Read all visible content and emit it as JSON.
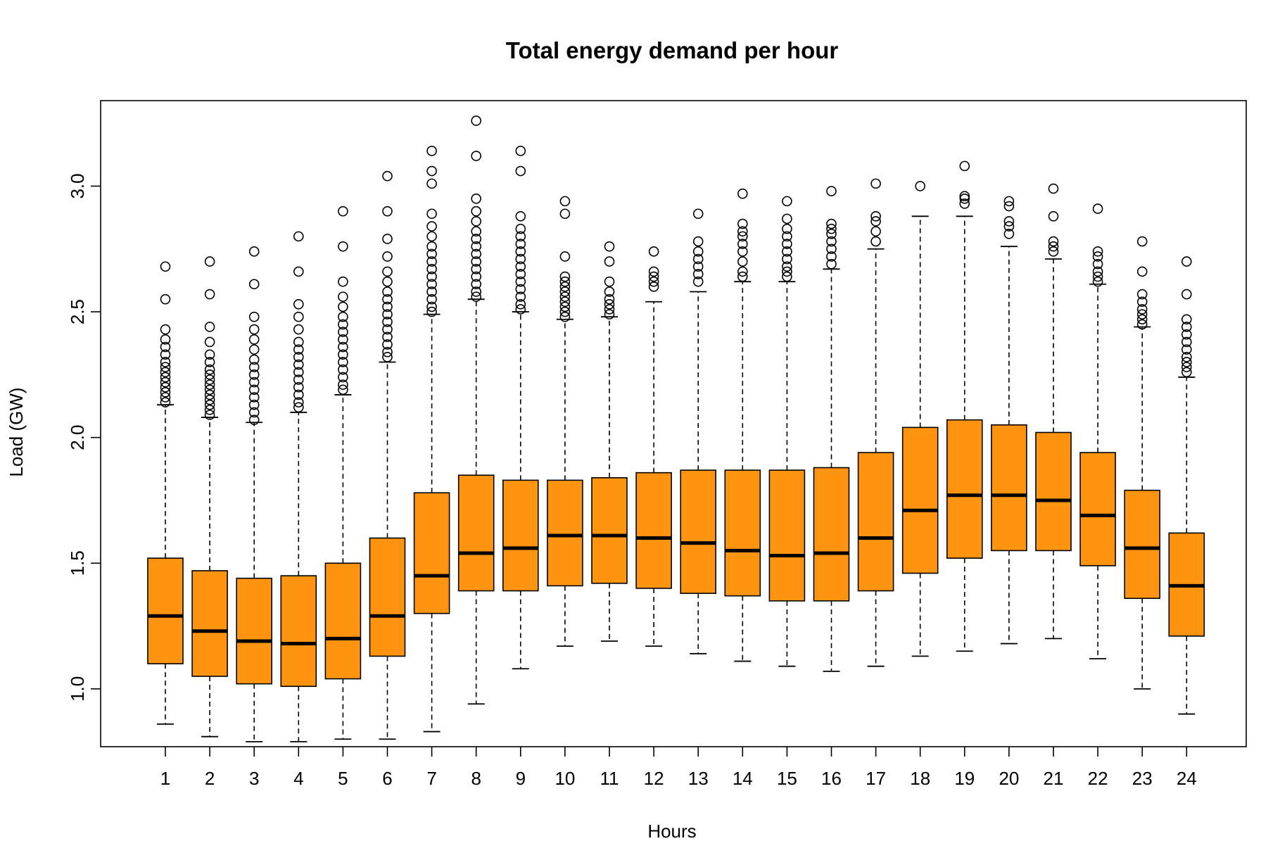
{
  "chart_data": {
    "type": "boxplot",
    "title": "Total energy demand per hour",
    "xlabel": "Hours",
    "ylabel": "Load (GW)",
    "categories": [
      "1",
      "2",
      "3",
      "4",
      "5",
      "6",
      "7",
      "8",
      "9",
      "10",
      "11",
      "12",
      "13",
      "14",
      "15",
      "16",
      "17",
      "18",
      "19",
      "20",
      "21",
      "22",
      "23",
      "24"
    ],
    "yticks": [
      "1.0",
      "1.5",
      "2.0",
      "2.5",
      "3.0"
    ],
    "ylim": [
      0.77,
      3.34
    ],
    "grid": false,
    "legend": "none",
    "colors": {
      "box_fill": "#FF9410",
      "stroke": "#000000",
      "background": "#ffffff"
    },
    "boxes": [
      {
        "hour": "1",
        "whisker_low": 0.86,
        "q1": 1.1,
        "median": 1.29,
        "q3": 1.52,
        "whisker_high": 2.13,
        "outliers": [
          2.14,
          2.16,
          2.18,
          2.2,
          2.22,
          2.24,
          2.26,
          2.28,
          2.3,
          2.33,
          2.36,
          2.39,
          2.43,
          2.55,
          2.68
        ]
      },
      {
        "hour": "2",
        "whisker_low": 0.81,
        "q1": 1.05,
        "median": 1.23,
        "q3": 1.47,
        "whisker_high": 2.08,
        "outliers": [
          2.09,
          2.11,
          2.13,
          2.15,
          2.17,
          2.19,
          2.21,
          2.23,
          2.25,
          2.27,
          2.3,
          2.33,
          2.38,
          2.44,
          2.57,
          2.7
        ]
      },
      {
        "hour": "3",
        "whisker_low": 0.79,
        "q1": 1.02,
        "median": 1.19,
        "q3": 1.44,
        "whisker_high": 2.06,
        "outliers": [
          2.07,
          2.1,
          2.13,
          2.16,
          2.19,
          2.22,
          2.25,
          2.28,
          2.31,
          2.35,
          2.39,
          2.43,
          2.48,
          2.61,
          2.74
        ]
      },
      {
        "hour": "4",
        "whisker_low": 0.79,
        "q1": 1.01,
        "median": 1.18,
        "q3": 1.45,
        "whisker_high": 2.1,
        "outliers": [
          2.12,
          2.14,
          2.17,
          2.2,
          2.23,
          2.26,
          2.29,
          2.32,
          2.35,
          2.38,
          2.43,
          2.48,
          2.53,
          2.66,
          2.8
        ]
      },
      {
        "hour": "5",
        "whisker_low": 0.8,
        "q1": 1.04,
        "median": 1.2,
        "q3": 1.5,
        "whisker_high": 2.17,
        "outliers": [
          2.19,
          2.21,
          2.24,
          2.27,
          2.3,
          2.33,
          2.36,
          2.39,
          2.42,
          2.45,
          2.48,
          2.52,
          2.56,
          2.62,
          2.76,
          2.9
        ]
      },
      {
        "hour": "6",
        "whisker_low": 0.8,
        "q1": 1.13,
        "median": 1.29,
        "q3": 1.6,
        "whisker_high": 2.3,
        "outliers": [
          2.32,
          2.34,
          2.37,
          2.4,
          2.43,
          2.46,
          2.49,
          2.52,
          2.55,
          2.58,
          2.62,
          2.66,
          2.72,
          2.79,
          2.9,
          3.04
        ]
      },
      {
        "hour": "7",
        "whisker_low": 0.83,
        "q1": 1.3,
        "median": 1.45,
        "q3": 1.78,
        "whisker_high": 2.49,
        "outliers": [
          2.5,
          2.52,
          2.55,
          2.58,
          2.61,
          2.64,
          2.67,
          2.7,
          2.73,
          2.76,
          2.8,
          2.84,
          2.89,
          3.01,
          3.06,
          3.14
        ]
      },
      {
        "hour": "8",
        "whisker_low": 0.94,
        "q1": 1.39,
        "median": 1.54,
        "q3": 1.85,
        "whisker_high": 2.55,
        "outliers": [
          2.56,
          2.58,
          2.61,
          2.64,
          2.67,
          2.7,
          2.73,
          2.76,
          2.79,
          2.82,
          2.86,
          2.9,
          2.95,
          3.12,
          3.26
        ]
      },
      {
        "hour": "9",
        "whisker_low": 1.08,
        "q1": 1.39,
        "median": 1.56,
        "q3": 1.83,
        "whisker_high": 2.5,
        "outliers": [
          2.51,
          2.53,
          2.56,
          2.59,
          2.62,
          2.65,
          2.68,
          2.71,
          2.74,
          2.77,
          2.8,
          2.83,
          2.88,
          3.06,
          3.14
        ]
      },
      {
        "hour": "10",
        "whisker_low": 1.17,
        "q1": 1.41,
        "median": 1.61,
        "q3": 1.83,
        "whisker_high": 2.47,
        "outliers": [
          2.48,
          2.5,
          2.52,
          2.54,
          2.56,
          2.58,
          2.6,
          2.62,
          2.64,
          2.72,
          2.89,
          2.94
        ]
      },
      {
        "hour": "11",
        "whisker_low": 1.19,
        "q1": 1.42,
        "median": 1.61,
        "q3": 1.84,
        "whisker_high": 2.48,
        "outliers": [
          2.49,
          2.51,
          2.53,
          2.55,
          2.58,
          2.62,
          2.7,
          2.76
        ]
      },
      {
        "hour": "12",
        "whisker_low": 1.17,
        "q1": 1.4,
        "median": 1.6,
        "q3": 1.86,
        "whisker_high": 2.54,
        "outliers": [
          2.6,
          2.62,
          2.64,
          2.66,
          2.74
        ]
      },
      {
        "hour": "13",
        "whisker_low": 1.14,
        "q1": 1.38,
        "median": 1.58,
        "q3": 1.87,
        "whisker_high": 2.58,
        "outliers": [
          2.62,
          2.65,
          2.68,
          2.71,
          2.74,
          2.78,
          2.89
        ]
      },
      {
        "hour": "14",
        "whisker_low": 1.11,
        "q1": 1.37,
        "median": 1.55,
        "q3": 1.87,
        "whisker_high": 2.62,
        "outliers": [
          2.64,
          2.66,
          2.7,
          2.74,
          2.77,
          2.8,
          2.82,
          2.85,
          2.97
        ]
      },
      {
        "hour": "15",
        "whisker_low": 1.09,
        "q1": 1.35,
        "median": 1.53,
        "q3": 1.87,
        "whisker_high": 2.62,
        "outliers": [
          2.64,
          2.66,
          2.68,
          2.71,
          2.74,
          2.77,
          2.8,
          2.83,
          2.87,
          2.94
        ]
      },
      {
        "hour": "16",
        "whisker_low": 1.07,
        "q1": 1.35,
        "median": 1.54,
        "q3": 1.88,
        "whisker_high": 2.67,
        "outliers": [
          2.69,
          2.72,
          2.75,
          2.78,
          2.81,
          2.83,
          2.85,
          2.98
        ]
      },
      {
        "hour": "17",
        "whisker_low": 1.09,
        "q1": 1.39,
        "median": 1.6,
        "q3": 1.94,
        "whisker_high": 2.75,
        "outliers": [
          2.78,
          2.82,
          2.86,
          2.88,
          3.01
        ]
      },
      {
        "hour": "18",
        "whisker_low": 1.13,
        "q1": 1.46,
        "median": 1.71,
        "q3": 2.04,
        "whisker_high": 2.88,
        "outliers": [
          3.0
        ]
      },
      {
        "hour": "19",
        "whisker_low": 1.15,
        "q1": 1.52,
        "median": 1.77,
        "q3": 2.07,
        "whisker_high": 2.88,
        "outliers": [
          2.93,
          2.95,
          2.96,
          3.08
        ]
      },
      {
        "hour": "20",
        "whisker_low": 1.18,
        "q1": 1.55,
        "median": 1.77,
        "q3": 2.05,
        "whisker_high": 2.76,
        "outliers": [
          2.81,
          2.84,
          2.86,
          2.92,
          2.94
        ]
      },
      {
        "hour": "21",
        "whisker_low": 1.2,
        "q1": 1.55,
        "median": 1.75,
        "q3": 2.02,
        "whisker_high": 2.71,
        "outliers": [
          2.74,
          2.76,
          2.78,
          2.88,
          2.99
        ]
      },
      {
        "hour": "22",
        "whisker_low": 1.12,
        "q1": 1.49,
        "median": 1.69,
        "q3": 1.94,
        "whisker_high": 2.61,
        "outliers": [
          2.62,
          2.64,
          2.66,
          2.69,
          2.72,
          2.74,
          2.91
        ]
      },
      {
        "hour": "23",
        "whisker_low": 1.0,
        "q1": 1.36,
        "median": 1.56,
        "q3": 1.79,
        "whisker_high": 2.44,
        "outliers": [
          2.45,
          2.47,
          2.49,
          2.51,
          2.54,
          2.57,
          2.66,
          2.78
        ]
      },
      {
        "hour": "24",
        "whisker_low": 0.9,
        "q1": 1.21,
        "median": 1.41,
        "q3": 1.62,
        "whisker_high": 2.24,
        "outliers": [
          2.26,
          2.28,
          2.3,
          2.32,
          2.35,
          2.38,
          2.41,
          2.44,
          2.47,
          2.57,
          2.7
        ]
      }
    ]
  }
}
